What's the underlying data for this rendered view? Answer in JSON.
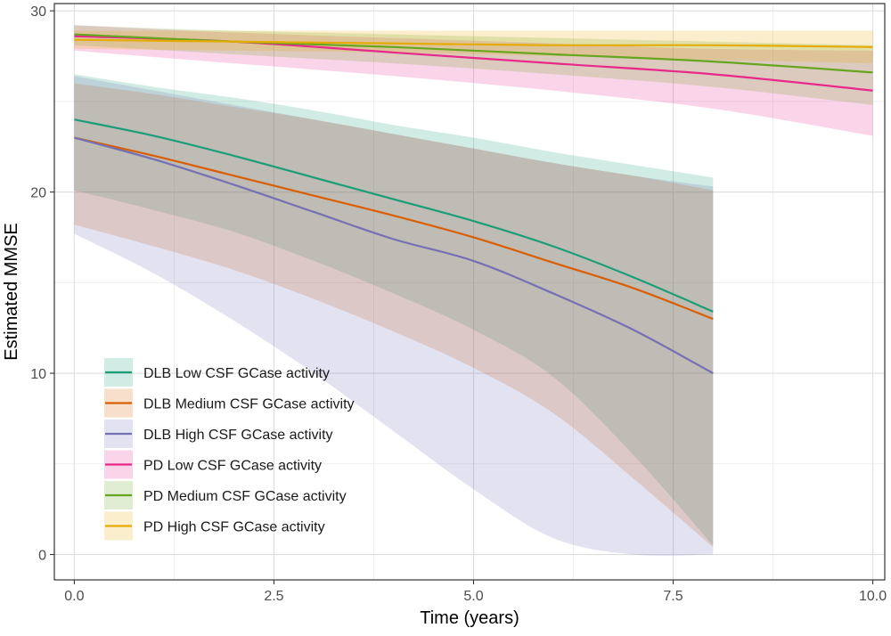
{
  "chart_data": {
    "type": "line",
    "title": "",
    "xlabel": "Time (years)",
    "ylabel": "Estimated MMSE",
    "xlim": [
      -0.25,
      10.15
    ],
    "ylim": [
      -1.4,
      30.4
    ],
    "x_ticks": [
      0,
      2.5,
      5,
      7.5,
      10
    ],
    "x_tick_labels": [
      "0.0",
      "2.5",
      "5.0",
      "7.5",
      "10.0"
    ],
    "y_ticks": [
      0,
      10,
      20,
      30
    ],
    "y_tick_labels": [
      "0",
      "10",
      "20",
      "30"
    ],
    "x_minor_ticks": [
      1.25,
      3.75,
      6.25,
      8.75
    ],
    "y_minor_ticks": [
      5,
      15,
      25
    ],
    "grid": true,
    "legend_position": "bottom-left",
    "band_opacity": 0.2,
    "series": [
      {
        "name": "DLB Low CSF GCase activity",
        "color": "#1b9e77",
        "x": [
          0,
          1,
          2,
          3,
          4,
          5,
          6,
          7,
          8
        ],
        "y": [
          24.0,
          23.1,
          22.0,
          20.8,
          19.6,
          18.4,
          17.0,
          15.3,
          13.4
        ],
        "lower": [
          20.1,
          19.0,
          17.8,
          16.2,
          14.4,
          12.4,
          9.8,
          5.5,
          0.5
        ],
        "upper": [
          26.5,
          25.8,
          25.2,
          24.5,
          23.7,
          23.0,
          22.2,
          21.5,
          20.8
        ]
      },
      {
        "name": "DLB Medium CSF GCase activity",
        "color": "#d95f02",
        "x": [
          0,
          1,
          2,
          3,
          4,
          5,
          6,
          7,
          8
        ],
        "y": [
          23.0,
          22.0,
          20.9,
          19.8,
          18.7,
          17.5,
          16.1,
          14.7,
          13.0
        ],
        "lower": [
          18.2,
          17.0,
          15.7,
          14.1,
          12.3,
          10.3,
          7.8,
          4.2,
          0.4
        ],
        "upper": [
          26.0,
          25.4,
          24.7,
          24.0,
          23.2,
          22.4,
          21.6,
          20.9,
          20.1
        ]
      },
      {
        "name": "DLB High CSF GCase activity",
        "color": "#7570b3",
        "x": [
          0,
          1,
          2,
          3,
          4,
          5,
          6,
          7,
          8
        ],
        "y": [
          23.0,
          21.8,
          20.4,
          18.9,
          17.4,
          16.2,
          14.4,
          12.4,
          10.0
        ],
        "lower": [
          17.7,
          15.5,
          12.9,
          10.0,
          6.8,
          3.6,
          0.9,
          0.0,
          0.0
        ],
        "upper": [
          26.4,
          25.6,
          24.8,
          24.0,
          23.2,
          22.4,
          21.6,
          20.9,
          20.3
        ]
      },
      {
        "name": "PD Low CSF GCase activity",
        "color": "#e7298a",
        "x": [
          0,
          2,
          4,
          6,
          8,
          10
        ],
        "y": [
          28.6,
          28.3,
          27.7,
          27.1,
          26.5,
          25.6
        ],
        "lower": [
          27.8,
          27.1,
          26.4,
          25.6,
          24.6,
          23.1
        ],
        "upper": [
          29.2,
          28.8,
          28.5,
          28.2,
          27.9,
          27.8
        ]
      },
      {
        "name": "PD Medium CSF GCase activity",
        "color": "#66a61e",
        "x": [
          0,
          2,
          4,
          6,
          8,
          10
        ],
        "y": [
          28.7,
          28.3,
          28.0,
          27.6,
          27.2,
          26.6
        ],
        "lower": [
          28.1,
          27.6,
          27.1,
          26.5,
          25.8,
          24.8
        ],
        "upper": [
          29.2,
          28.9,
          28.7,
          28.5,
          28.3,
          28.1
        ]
      },
      {
        "name": "PD High CSF GCase activity",
        "color": "#e6ab02",
        "x": [
          0,
          2,
          4,
          6,
          8,
          10
        ],
        "y": [
          28.4,
          28.3,
          28.2,
          28.1,
          28.1,
          28.0
        ],
        "lower": [
          27.9,
          27.8,
          27.7,
          27.5,
          27.3,
          27.1
        ],
        "upper": [
          28.9,
          28.9,
          28.9,
          28.9,
          28.9,
          28.9
        ]
      }
    ]
  }
}
